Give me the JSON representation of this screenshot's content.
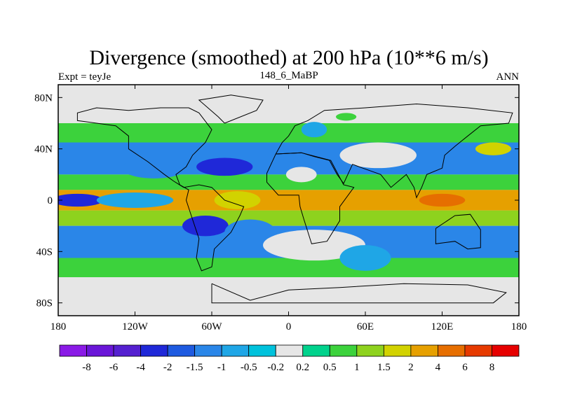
{
  "chart_data": {
    "type": "heatmap",
    "title": "Divergence (smoothed) at 200 hPa (10**6 m/s)",
    "left_subtitle": "Expt = teyJe",
    "center_subtitle": "148_6_MaBP",
    "right_subtitle": "ANN",
    "xlim": [
      -180,
      180
    ],
    "ylim": [
      -90,
      90
    ],
    "x_ticks": [
      {
        "value": -180,
        "label": "180"
      },
      {
        "value": -120,
        "label": "120W"
      },
      {
        "value": -60,
        "label": "60W"
      },
      {
        "value": 0,
        "label": "0"
      },
      {
        "value": 60,
        "label": "60E"
      },
      {
        "value": 120,
        "label": "120E"
      },
      {
        "value": 180,
        "label": "180"
      }
    ],
    "y_ticks": [
      {
        "value": 80,
        "label": "80N"
      },
      {
        "value": 40,
        "label": "40N"
      },
      {
        "value": 0,
        "label": "0"
      },
      {
        "value": -40,
        "label": "40S"
      },
      {
        "value": -80,
        "label": "80S"
      }
    ],
    "levels": [
      "-8",
      "-6",
      "-4",
      "-2",
      "-1.5",
      "-1",
      "-0.5",
      "-0.2",
      "0.2",
      "0.5",
      "1",
      "1.5",
      "2",
      "4",
      "6",
      "8"
    ],
    "level_colors": [
      "#8a1ae6",
      "#6a16d8",
      "#5520d0",
      "#1f28d8",
      "#1e5ae0",
      "#2a86e8",
      "#1fa6e6",
      "#00c2dc",
      "#e6e6e6",
      "#00d28c",
      "#3cd23c",
      "#8ed21e",
      "#d2d200",
      "#e6a000",
      "#e66e00",
      "#e63a00",
      "#e60000"
    ],
    "bands": [
      {
        "lat_min": 60,
        "lat_max": 90,
        "value": 0
      },
      {
        "lat_min": 45,
        "lat_max": 60,
        "value": 0.7
      },
      {
        "lat_min": 20,
        "lat_max": 45,
        "value": -1.2
      },
      {
        "lat_min": 8,
        "lat_max": 20,
        "value": 0.8
      },
      {
        "lat_min": -8,
        "lat_max": 8,
        "value": 2.5
      },
      {
        "lat_min": -20,
        "lat_max": -8,
        "value": 1.2
      },
      {
        "lat_min": -45,
        "lat_max": -20,
        "value": -1.2
      },
      {
        "lat_min": -60,
        "lat_max": -45,
        "value": 0.7
      },
      {
        "lat_min": -90,
        "lat_max": -60,
        "value": 0
      }
    ],
    "features": [
      {
        "lon": -165,
        "lat": 0,
        "rx": 20,
        "ry": 5,
        "value": -3
      },
      {
        "lon": -120,
        "lat": 0,
        "rx": 30,
        "ry": 6,
        "value": -1
      },
      {
        "lon": -50,
        "lat": 26,
        "rx": 22,
        "ry": 7,
        "value": -3
      },
      {
        "lon": -105,
        "lat": 25,
        "rx": 25,
        "ry": 8,
        "value": -1.5
      },
      {
        "lon": -65,
        "lat": -20,
        "rx": 18,
        "ry": 8,
        "value": -3
      },
      {
        "lon": -30,
        "lat": -25,
        "rx": 20,
        "ry": 10,
        "value": -1.3
      },
      {
        "lon": 100,
        "lat": 0,
        "rx": 30,
        "ry": 8,
        "value": 3
      },
      {
        "lon": 120,
        "lat": 0,
        "rx": 18,
        "ry": 5,
        "value": 4.5
      },
      {
        "lon": -40,
        "lat": 0,
        "rx": 18,
        "ry": 7,
        "value": 1.8
      },
      {
        "lon": 10,
        "lat": 20,
        "rx": 12,
        "ry": 6,
        "value": 0
      },
      {
        "lon": 70,
        "lat": 35,
        "rx": 30,
        "ry": 10,
        "value": 0
      },
      {
        "lon": 20,
        "lat": -35,
        "rx": 40,
        "ry": 12,
        "value": 0
      },
      {
        "lon": 60,
        "lat": -45,
        "rx": 20,
        "ry": 10,
        "value": -0.8
      },
      {
        "lon": 160,
        "lat": 40,
        "rx": 14,
        "ry": 5,
        "value": 1.8
      },
      {
        "lon": 45,
        "lat": 65,
        "rx": 8,
        "ry": 3,
        "value": 0.6
      },
      {
        "lon": 20,
        "lat": 55,
        "rx": 10,
        "ry": 6,
        "value": -0.8
      }
    ],
    "coastlines": [
      [
        [
          -78,
          72
        ],
        [
          -70,
          68
        ],
        [
          -60,
          55
        ],
        [
          -65,
          45
        ],
        [
          -75,
          35
        ],
        [
          -80,
          26
        ],
        [
          -88,
          20
        ],
        [
          -85,
          12
        ],
        [
          -78,
          8
        ],
        [
          -80,
          0
        ],
        [
          -75,
          -15
        ],
        [
          -70,
          -30
        ],
        [
          -72,
          -45
        ],
        [
          -68,
          -55
        ],
        [
          -60,
          -52
        ],
        [
          -58,
          -38
        ],
        [
          -45,
          -25
        ],
        [
          -38,
          -12
        ],
        [
          -35,
          -5
        ],
        [
          -50,
          0
        ],
        [
          -60,
          10
        ],
        [
          -70,
          12
        ],
        [
          -82,
          10
        ],
        [
          -90,
          15
        ],
        [
          -97,
          20
        ],
        [
          -110,
          30
        ],
        [
          -125,
          40
        ],
        [
          -125,
          50
        ],
        [
          -135,
          58
        ],
        [
          -150,
          60
        ],
        [
          -165,
          62
        ],
        [
          -165,
          68
        ],
        [
          -150,
          72
        ],
        [
          -125,
          70
        ],
        [
          -100,
          72
        ],
        [
          -78,
          72
        ]
      ],
      [
        [
          -10,
          36
        ],
        [
          -5,
          45
        ],
        [
          0,
          50
        ],
        [
          5,
          58
        ],
        [
          15,
          62
        ],
        [
          28,
          70
        ],
        [
          60,
          72
        ],
        [
          100,
          75
        ],
        [
          140,
          72
        ],
        [
          175,
          68
        ],
        [
          172,
          60
        ],
        [
          150,
          58
        ],
        [
          140,
          50
        ],
        [
          130,
          42
        ],
        [
          122,
          35
        ],
        [
          120,
          25
        ],
        [
          108,
          20
        ],
        [
          104,
          10
        ],
        [
          100,
          2
        ],
        [
          98,
          10
        ],
        [
          92,
          20
        ],
        [
          80,
          10
        ],
        [
          72,
          20
        ],
        [
          58,
          25
        ],
        [
          50,
          28
        ],
        [
          43,
          13
        ],
        [
          38,
          20
        ],
        [
          32,
          31
        ],
        [
          20,
          34
        ],
        [
          10,
          37
        ],
        [
          -10,
          36
        ]
      ],
      [
        [
          -17,
          21
        ],
        [
          -17,
          14
        ],
        [
          -8,
          4
        ],
        [
          8,
          4
        ],
        [
          9,
          -5
        ],
        [
          12,
          -15
        ],
        [
          18,
          -34
        ],
        [
          30,
          -32
        ],
        [
          40,
          -16
        ],
        [
          40,
          -5
        ],
        [
          51,
          10
        ],
        [
          43,
          12
        ],
        [
          33,
          31
        ],
        [
          10,
          37
        ],
        [
          -10,
          36
        ],
        [
          -17,
          21
        ]
      ],
      [
        [
          115,
          -22
        ],
        [
          130,
          -12
        ],
        [
          142,
          -11
        ],
        [
          150,
          -23
        ],
        [
          150,
          -37
        ],
        [
          140,
          -38
        ],
        [
          130,
          -32
        ],
        [
          115,
          -34
        ],
        [
          115,
          -22
        ]
      ],
      [
        [
          -60,
          -65
        ],
        [
          -30,
          -78
        ],
        [
          0,
          -70
        ],
        [
          40,
          -68
        ],
        [
          90,
          -65
        ],
        [
          140,
          -66
        ],
        [
          170,
          -72
        ],
        [
          160,
          -80
        ],
        [
          -60,
          -80
        ],
        [
          -60,
          -65
        ]
      ],
      [
        [
          -50,
          60
        ],
        [
          -25,
          70
        ],
        [
          -20,
          78
        ],
        [
          -45,
          82
        ],
        [
          -70,
          78
        ],
        [
          -55,
          65
        ],
        [
          -50,
          60
        ]
      ]
    ]
  }
}
